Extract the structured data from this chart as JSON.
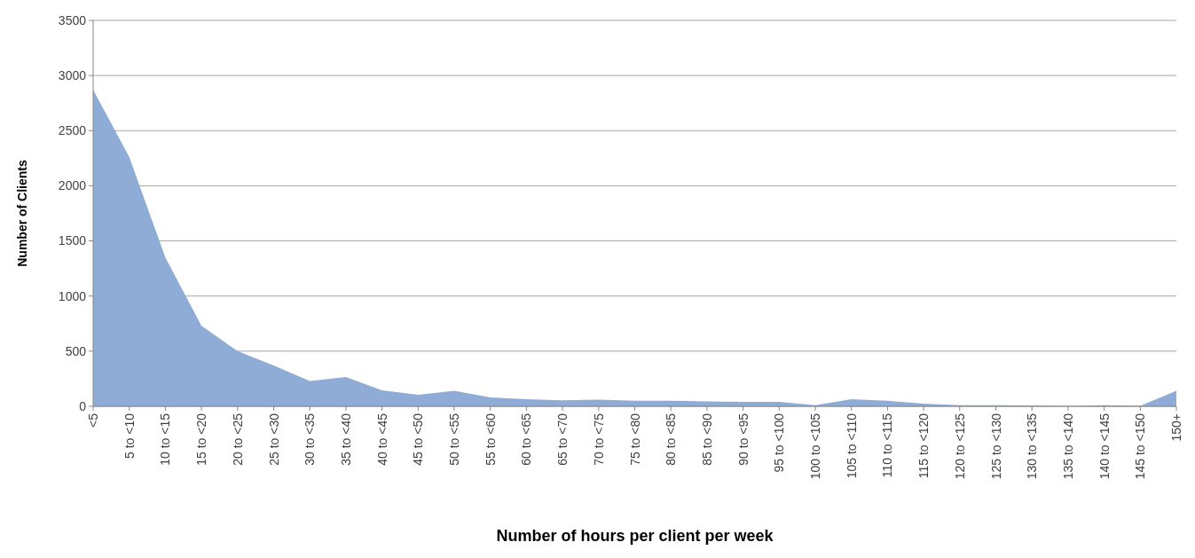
{
  "chart_data": {
    "type": "area",
    "xlabel": "Number of hours per client per week",
    "ylabel": "Number of Clients",
    "categories": [
      "<5",
      "5 to <10",
      "10 to <15",
      "15 to <20",
      "20 to <25",
      "25 to <30",
      "30 to <35",
      "35 to <40",
      "40 to <45",
      "45 to <50",
      "50 to <55",
      "55 to <60",
      "60 to <65",
      "65 to <70",
      "70 to <75",
      "75 to <80",
      "80 to <85",
      "85 to <90",
      "90 to <95",
      "95 to <100",
      "100 to <105",
      "105 to <110",
      "110 to <115",
      "115 to <120",
      "120 to <125",
      "125 to <130",
      "130 to <135",
      "135 to <140",
      "140 to <145",
      "145 to <150",
      "150+"
    ],
    "values": [
      2870,
      2260,
      1350,
      730,
      500,
      370,
      230,
      265,
      145,
      105,
      140,
      80,
      65,
      55,
      60,
      50,
      50,
      45,
      40,
      40,
      10,
      65,
      50,
      25,
      10,
      10,
      8,
      0,
      10,
      5,
      140
    ],
    "color": "#8eacd6",
    "ylim": [
      0,
      3500
    ],
    "yticks": [
      0,
      500,
      1000,
      1500,
      2000,
      2500,
      3000,
      3500
    ],
    "grid": "y"
  }
}
